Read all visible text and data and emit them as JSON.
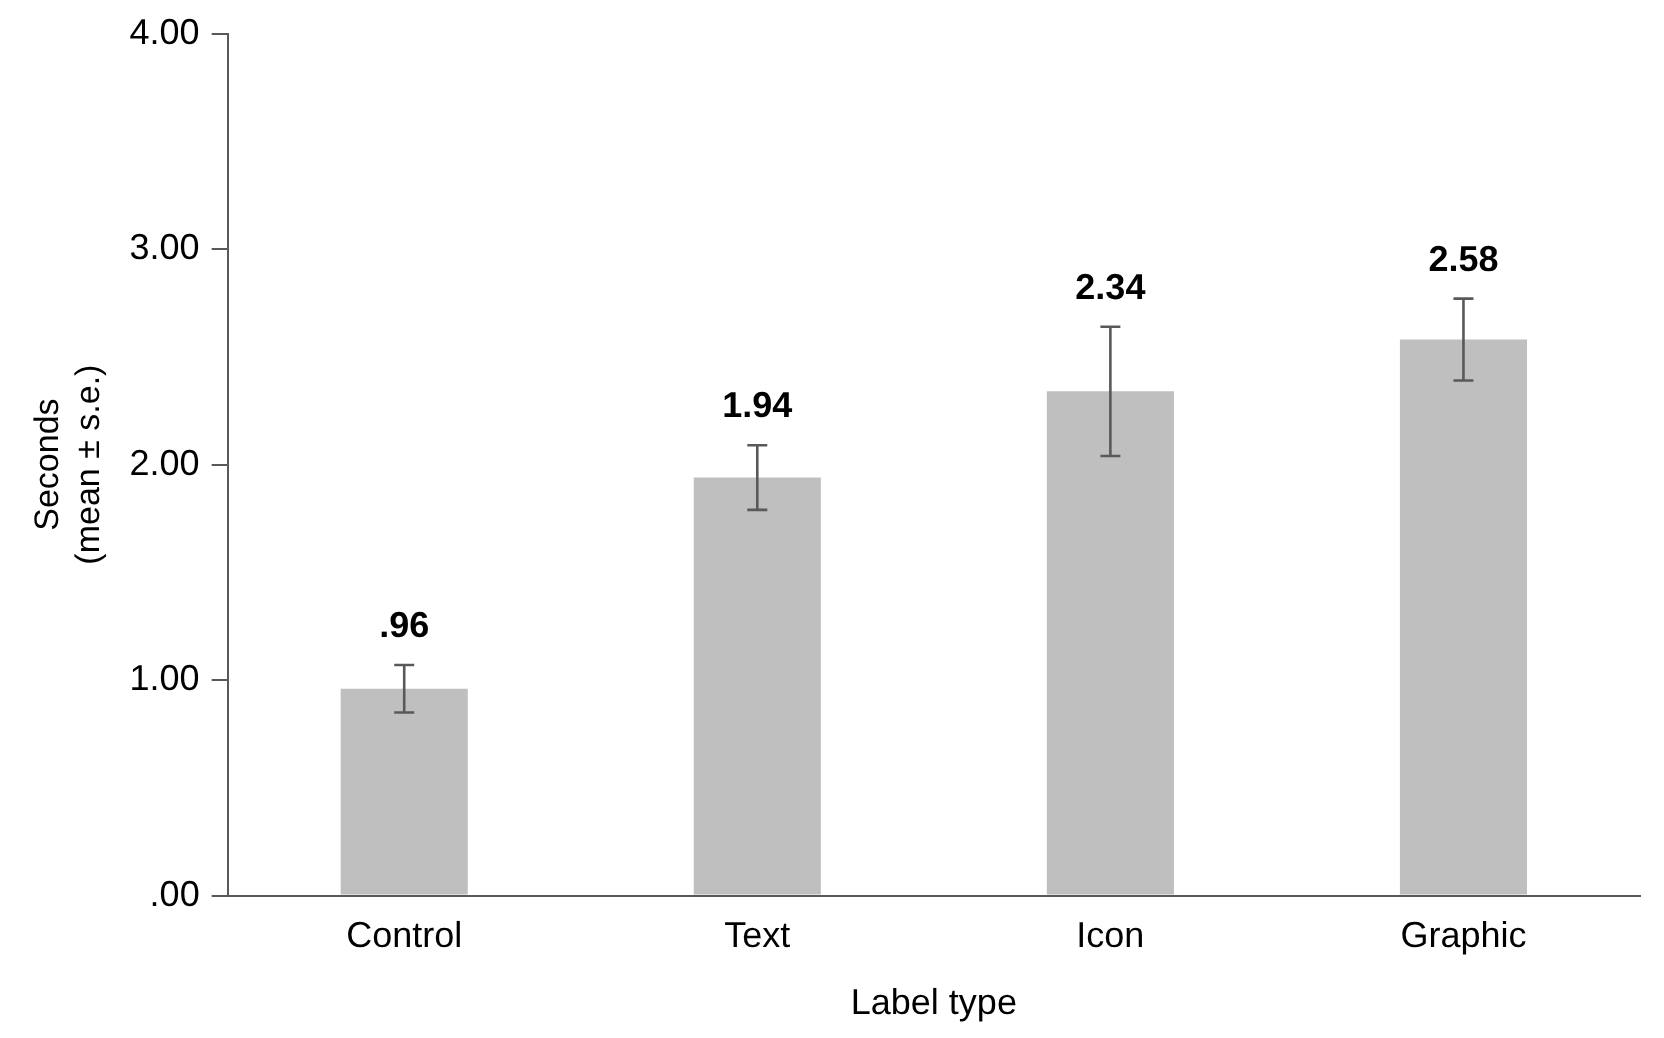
{
  "chart_data": {
    "type": "bar",
    "xlabel": "Label type",
    "ylabel": "Seconds\n(mean ± s.e.)",
    "categories": [
      "Control",
      "Text",
      "Icon",
      "Graphic"
    ],
    "values": [
      0.96,
      1.94,
      2.34,
      2.58
    ],
    "errors": [
      0.11,
      0.15,
      0.3,
      0.19
    ],
    "value_labels": [
      ".96",
      "1.94",
      "2.34",
      "2.58"
    ],
    "color": "#bfbfbf",
    "ylim": [
      0,
      4
    ],
    "yticks": [
      {
        "value": 0,
        "label": ".00"
      },
      {
        "value": 1,
        "label": "1.00"
      },
      {
        "value": 2,
        "label": "2.00"
      },
      {
        "value": 3,
        "label": "3.00"
      },
      {
        "value": 4,
        "label": "4.00"
      }
    ],
    "grid": false,
    "legend": false
  }
}
